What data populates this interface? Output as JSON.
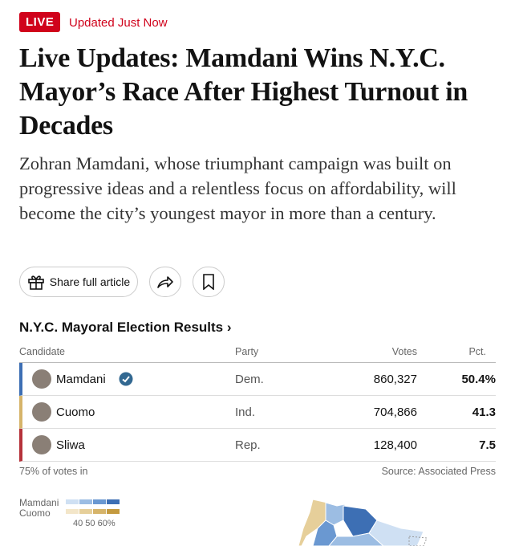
{
  "header": {
    "badge": "LIVE",
    "updated": "Updated Just Now"
  },
  "headline": "Live Updates: Mamdani Wins N.Y.C. Mayor’s Race After Highest Turnout in Decades",
  "dek": "Zohran Mamdani, whose triumphant campaign was built on progressive ideas and a relentless focus on affordability, will become the city’s youngest mayor in more than a century.",
  "share": {
    "label": "Share full article"
  },
  "results": {
    "title": "N.Y.C. Mayoral Election Results ›",
    "columns": [
      "Candidate",
      "Party",
      "Votes",
      "Pct."
    ],
    "rows": [
      [
        "Mamdani",
        "Dem.",
        "860,327",
        "50.4%"
      ],
      [
        "Cuomo",
        "Ind.",
        "704,866",
        "41.3"
      ],
      [
        "Sliwa",
        "Rep.",
        "128,400",
        "7.5"
      ]
    ],
    "reporting": "75% of votes in",
    "source": "Source: Associated Press"
  },
  "legend": {
    "items": [
      "Mamdani",
      "Cuomo"
    ],
    "scale": "40 50 60%"
  }
}
